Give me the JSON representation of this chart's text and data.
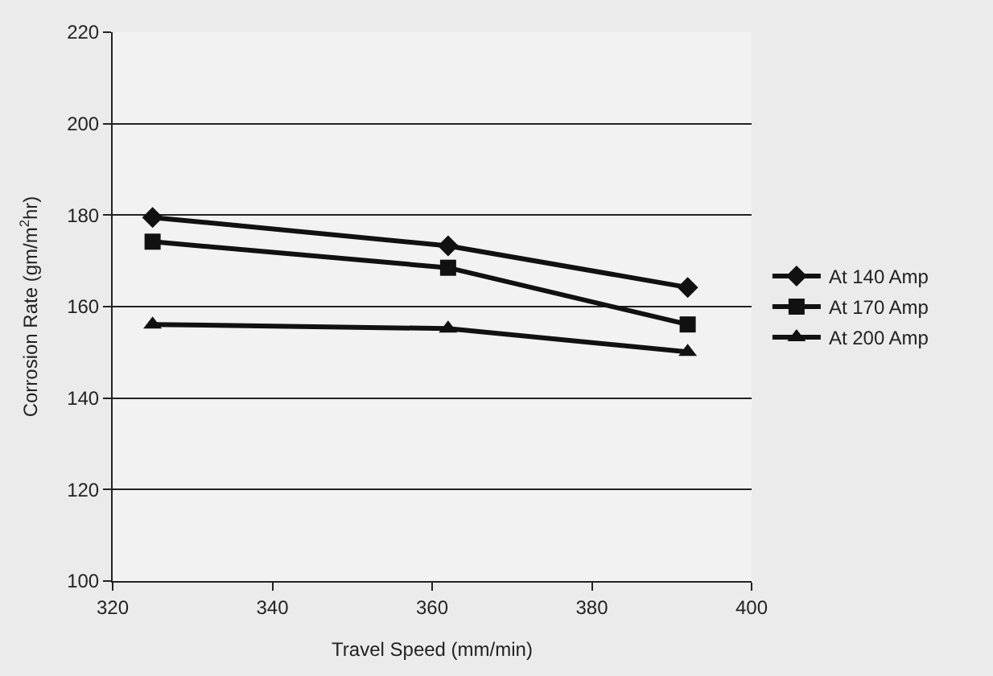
{
  "chart_data": {
    "type": "line",
    "xlabel": "Travel Speed (mm/min)",
    "ylabel": "Corrosion Rate (gm/m$^{2}$hr)",
    "x": [
      325,
      362,
      392
    ],
    "series": [
      {
        "name": "At 140 Amp",
        "color": "#111111",
        "marker": "diamond",
        "values": [
          179.5,
          173.3,
          164.2
        ]
      },
      {
        "name": "At 170 Amp",
        "color": "#111111",
        "marker": "square",
        "values": [
          174.2,
          168.5,
          156.1
        ]
      },
      {
        "name": "At 200 Amp",
        "color": "#111111",
        "marker": "triangle",
        "values": [
          156.1,
          155.2,
          150.1
        ]
      }
    ],
    "xlim": [
      320,
      400
    ],
    "xticks": [
      320,
      340,
      360,
      380,
      400
    ],
    "ylim": [
      100,
      220
    ],
    "yticks": [
      100,
      120,
      140,
      160,
      180,
      200,
      220
    ],
    "grid": "y",
    "legend": "right",
    "line_style": "solid"
  }
}
